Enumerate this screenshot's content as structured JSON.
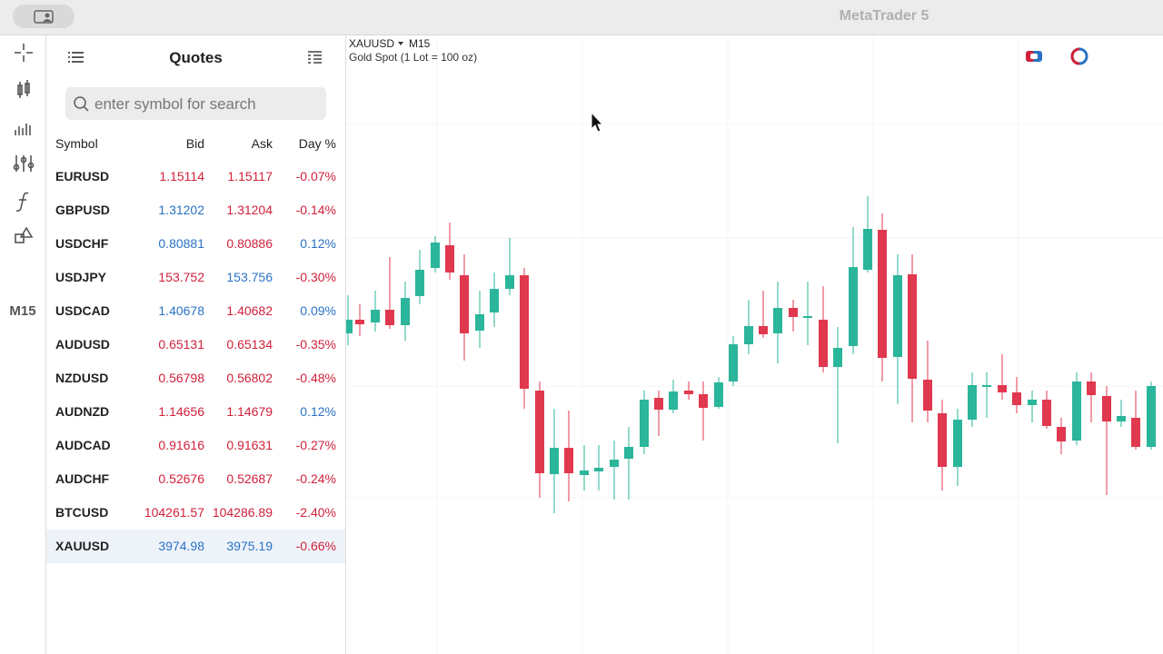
{
  "window": {
    "title": "MetaTrader 5"
  },
  "toolbar": {
    "timeframe": "M15"
  },
  "quotes": {
    "title": "Quotes",
    "search_placeholder": "enter symbol for search",
    "columns": [
      "Symbol",
      "Bid",
      "Ask",
      "Day %"
    ],
    "rows": [
      {
        "symbol": "EURUSD",
        "bid": "1.15114",
        "ask": "1.15117",
        "day": "-0.07%",
        "bid_color": "#d0213a",
        "ask_color": "#d0213a",
        "day_color": "#d0213a"
      },
      {
        "symbol": "GBPUSD",
        "bid": "1.31202",
        "ask": "1.31204",
        "day": "-0.14%",
        "bid_color": "#2a72c4",
        "ask_color": "#d0213a",
        "day_color": "#d0213a"
      },
      {
        "symbol": "USDCHF",
        "bid": "0.80881",
        "ask": "0.80886",
        "day": "0.12%",
        "bid_color": "#2a72c4",
        "ask_color": "#d0213a",
        "day_color": "#2a72c4"
      },
      {
        "symbol": "USDJPY",
        "bid": "153.752",
        "ask": "153.756",
        "day": "-0.30%",
        "bid_color": "#d0213a",
        "ask_color": "#2a72c4",
        "day_color": "#d0213a"
      },
      {
        "symbol": "USDCAD",
        "bid": "1.40678",
        "ask": "1.40682",
        "day": "0.09%",
        "bid_color": "#2a72c4",
        "ask_color": "#d0213a",
        "day_color": "#2a72c4"
      },
      {
        "symbol": "AUDUSD",
        "bid": "0.65131",
        "ask": "0.65134",
        "day": "-0.35%",
        "bid_color": "#d0213a",
        "ask_color": "#d0213a",
        "day_color": "#d0213a"
      },
      {
        "symbol": "NZDUSD",
        "bid": "0.56798",
        "ask": "0.56802",
        "day": "-0.48%",
        "bid_color": "#d0213a",
        "ask_color": "#d0213a",
        "day_color": "#d0213a"
      },
      {
        "symbol": "AUDNZD",
        "bid": "1.14656",
        "ask": "1.14679",
        "day": "0.12%",
        "bid_color": "#d0213a",
        "ask_color": "#d0213a",
        "day_color": "#2a72c4"
      },
      {
        "symbol": "AUDCAD",
        "bid": "0.91616",
        "ask": "0.91631",
        "day": "-0.27%",
        "bid_color": "#d0213a",
        "ask_color": "#d0213a",
        "day_color": "#d0213a"
      },
      {
        "symbol": "AUDCHF",
        "bid": "0.52676",
        "ask": "0.52687",
        "day": "-0.24%",
        "bid_color": "#d0213a",
        "ask_color": "#d0213a",
        "day_color": "#d0213a"
      },
      {
        "symbol": "BTCUSD",
        "bid": "104261.57",
        "ask": "104286.89",
        "day": "-2.40%",
        "bid_color": "#d0213a",
        "ask_color": "#d0213a",
        "day_color": "#d0213a"
      },
      {
        "symbol": "XAUUSD",
        "bid": "3974.98",
        "ask": "3975.19",
        "day": "-0.66%",
        "bid_color": "#2a72c4",
        "ask_color": "#2a72c4",
        "day_color": "#d0213a",
        "selected": true
      }
    ]
  },
  "chart": {
    "symbol": "XAUUSD",
    "timeframe": "M15",
    "description": "Gold Spot (1 Lot = 100 oz)"
  }
}
